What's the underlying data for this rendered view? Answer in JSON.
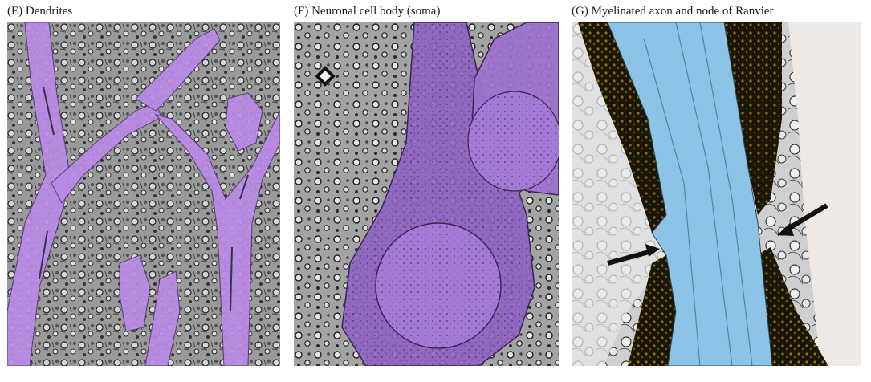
{
  "panels": [
    {
      "caption": "(E)  Dendrites",
      "subject": "dendrites",
      "tint": "#b07fe0"
    },
    {
      "caption": "(F)  Neuronal cell body (soma)",
      "subject": "soma",
      "tint": "#9b6fd4"
    },
    {
      "caption": "(G)  Myelinated axon and node of Ranvier",
      "subject": "myelinated-axon",
      "tint": "#8cc3e6",
      "myelin_color": "#6b5a10"
    }
  ],
  "colors": {
    "tissue_dark": "#2a2a2a",
    "tissue_mid": "#8a8a8a",
    "tissue_light": "#d8d8d8",
    "arrow": "#111111"
  }
}
